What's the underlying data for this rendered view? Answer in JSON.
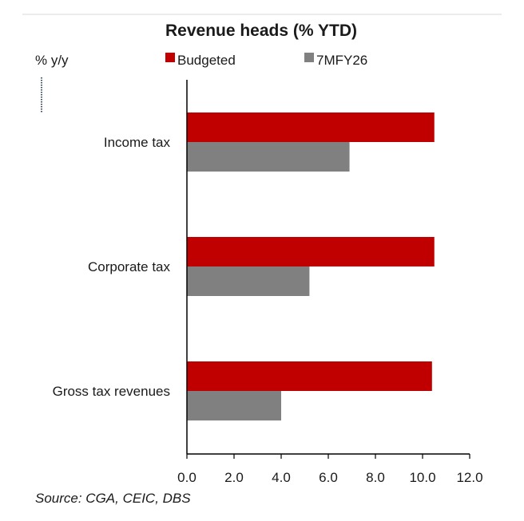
{
  "chart_data": {
    "type": "bar",
    "orientation": "horizontal",
    "title": "Revenue heads (% YTD)",
    "ylabel": "% y/y",
    "xlabel": "",
    "categories": [
      "Income tax",
      "Corporate tax",
      "Gross tax revenues"
    ],
    "series": [
      {
        "name": "Budgeted",
        "color": "#c00000",
        "values": [
          10.5,
          10.5,
          10.4
        ]
      },
      {
        "name": "7MFY26",
        "color": "#808080",
        "values": [
          6.9,
          5.2,
          4.0
        ]
      }
    ],
    "xlim": [
      0,
      12
    ],
    "xticks": [
      "0.0",
      "2.0",
      "4.0",
      "6.0",
      "8.0",
      "10.0",
      "12.0"
    ],
    "grid": false,
    "legend": "top",
    "source": "Source: CGA, CEIC, DBS"
  }
}
